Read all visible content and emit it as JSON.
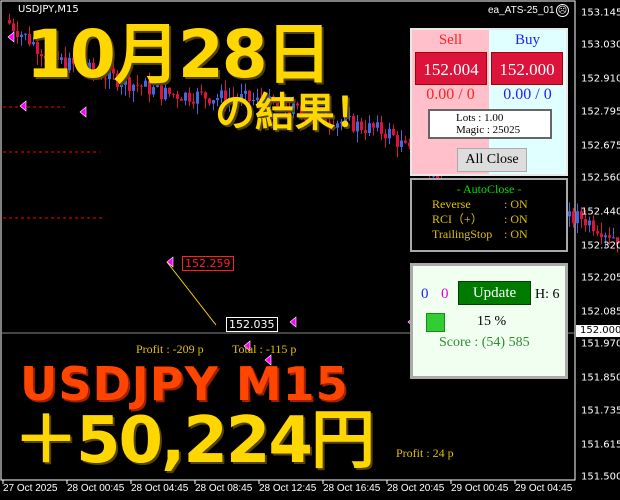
{
  "chart": {
    "symbol_label": "USDJPY,M15",
    "ea_label": "ea_ATS-25_01",
    "ea_status_icon": "sad-face-icon",
    "price_axis": [
      "153.145",
      "153.030",
      "152.910",
      "152.795",
      "152.675",
      "152.560",
      "152.440",
      "152.320",
      "152.205",
      "152.085",
      "151.970",
      "151.850",
      "151.735",
      "151.615",
      "151.500"
    ],
    "current_price": "152.000",
    "time_axis": [
      "27 Oct 2025",
      "28 Oct 00:45",
      "28 Oct 04:45",
      "28 Oct 08:45",
      "28 Oct 12:45",
      "28 Oct 16:45",
      "28 Oct 20:45",
      "29 Oct 00:45",
      "29 Oct 04:45"
    ],
    "price_path": [
      [
        0,
        153.12
      ],
      [
        3,
        152.98
      ],
      [
        10,
        152.86
      ],
      [
        15,
        152.84
      ],
      [
        24,
        152.72
      ],
      [
        27,
        152.55
      ],
      [
        31,
        152.38
      ],
      [
        36,
        152.42
      ],
      [
        41,
        152.26
      ],
      [
        46,
        152.18
      ],
      [
        50,
        151.95
      ],
      [
        53,
        152.02
      ],
      [
        57,
        152.18
      ],
      [
        61,
        151.92
      ],
      [
        65,
        151.86
      ],
      [
        70,
        152.02
      ],
      [
        74,
        152.12
      ],
      [
        78,
        152.38
      ],
      [
        82,
        152.12
      ],
      [
        87,
        151.96
      ],
      [
        94,
        152.12
      ],
      [
        100,
        152.05
      ],
      [
        105,
        152.0
      ],
      [
        117,
        151.95
      ],
      [
        120,
        151.75
      ],
      [
        124,
        151.62
      ],
      [
        127,
        151.75
      ],
      [
        130,
        151.9
      ]
    ],
    "colors": {
      "bull": "#4169e1",
      "bear": "#dc143c",
      "stop_line": "#ff0000",
      "trade_line": "#ffd700",
      "arrow": "#ff00ff"
    },
    "trade_labels": {
      "entry": "152.259",
      "exit": "152.035"
    },
    "profit_labels": [
      "Profit : -209 p",
      "Total : -115 p",
      "Profit : 24 p"
    ]
  },
  "panel": {
    "sell_label": "Sell",
    "buy_label": "Buy",
    "sell_price": "152.004",
    "buy_price": "152.000",
    "sell_position": "0.00 / 0",
    "buy_position": "0.00 / 0",
    "lots": "Lots   : 1.00",
    "magic": "Magic : 25025",
    "all_close": "All Close"
  },
  "autoclose": {
    "title": "- AutoClose -",
    "rows": [
      {
        "name": "Reverse",
        "value": ": ON"
      },
      {
        "name": "RCI（+）",
        "value": ": ON"
      },
      {
        "name": "TrailingStop",
        "value": ": ON"
      }
    ]
  },
  "status": {
    "count_blue": "0",
    "count_magenta": "0",
    "update": "Update",
    "h": "H: 6",
    "percent": "15 %",
    "score": "Score : (54) 585",
    "indicator_color": "#32cd32"
  },
  "overlay": {
    "date": "10月28日",
    "result": "の結果！",
    "pair": "USDJPY  M15",
    "amount": "＋50,224円"
  }
}
